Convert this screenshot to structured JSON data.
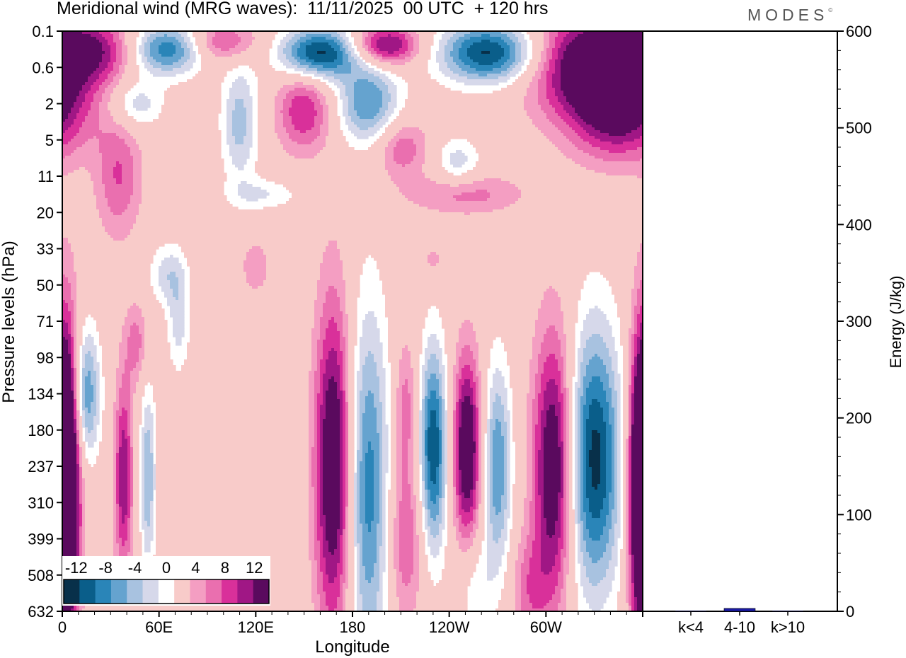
{
  "title": "Meridional wind (MRG waves):  11/11/2025  00 UTC  + 120 hrs",
  "brand": "MODES",
  "brand_mark": "©",
  "colors": {
    "neg": [
      "#08304a",
      "#0a5e8a",
      "#2a85b8",
      "#65a3cf",
      "#a8c2e0",
      "#d6d8ea"
    ],
    "pos": [
      "#f8cbc9",
      "#f49ec2",
      "#ea6faf",
      "#d9309a",
      "#a01785",
      "#5a0a5e"
    ],
    "zero": "#ffffff",
    "energy_bar": "#1a1aa6"
  },
  "chart_data": [
    {
      "type": "heatmap",
      "title": "Meridional wind (MRG waves)",
      "xlabel": "Longitude",
      "ylabel": "Pressure levels (hPa)",
      "x_ticks": [
        "0",
        "60E",
        "120E",
        "180",
        "120W",
        "60W"
      ],
      "x_tick_values": [
        0,
        60,
        120,
        180,
        240,
        300
      ],
      "xlim": [
        0,
        360
      ],
      "y_ticks": [
        "0.1",
        "0.6",
        "2",
        "5",
        "11",
        "20",
        "33",
        "50",
        "71",
        "98",
        "134",
        "180",
        "237",
        "310",
        "399",
        "508",
        "632"
      ],
      "colorbar": {
        "levels": [
          -14,
          -12,
          -10,
          -8,
          -6,
          -4,
          -2,
          2,
          4,
          6,
          8,
          10,
          12,
          14
        ],
        "labels": [
          "-12",
          "-8",
          "-4",
          "0",
          "4",
          "8",
          "12"
        ],
        "label_values": [
          -12,
          -8,
          -4,
          0,
          4,
          8,
          12
        ]
      },
      "features": [
        {
          "lon": 2,
          "lev": 12.5,
          "rx": 6,
          "ry": 3.2,
          "amp": 15
        },
        {
          "lon": 15,
          "lev": 10.0,
          "rx": 6,
          "ry": 1.3,
          "amp": -10
        },
        {
          "lon": 38,
          "lev": 12.3,
          "rx": 4,
          "ry": 1.9,
          "amp": 10
        },
        {
          "lon": 53,
          "lev": 12.3,
          "rx": 3.5,
          "ry": 1.8,
          "amp": -8
        },
        {
          "lon": 46,
          "lev": 8.6,
          "rx": 5,
          "ry": 0.8,
          "amp": 5
        },
        {
          "lon": 72,
          "lev": 8.0,
          "rx": 5,
          "ry": 1.0,
          "amp": -5
        },
        {
          "lon": 168,
          "lev": 12.0,
          "rx": 8,
          "ry": 3.2,
          "amp": 14
        },
        {
          "lon": 190,
          "lev": 12.6,
          "rx": 9,
          "ry": 3.5,
          "amp": -11
        },
        {
          "lon": 213,
          "lev": 10.3,
          "rx": 5,
          "ry": 1.3,
          "amp": 5
        },
        {
          "lon": 213,
          "lev": 14.0,
          "rx": 8,
          "ry": 1.6,
          "amp": 6
        },
        {
          "lon": 230,
          "lev": 11.5,
          "rx": 6,
          "ry": 2.0,
          "amp": -14
        },
        {
          "lon": 251,
          "lev": 11.5,
          "rx": 6,
          "ry": 1.8,
          "amp": 14
        },
        {
          "lon": 270,
          "lev": 12.0,
          "rx": 6,
          "ry": 2.0,
          "amp": -10
        },
        {
          "lon": 256,
          "lev": 15.3,
          "rx": 8,
          "ry": 1.0,
          "amp": -4
        },
        {
          "lon": 305,
          "lev": 12.0,
          "rx": 9,
          "ry": 2.6,
          "amp": 14
        },
        {
          "lon": 330,
          "lev": 11.8,
          "rx": 12,
          "ry": 2.6,
          "amp": -15
        },
        {
          "lon": 360,
          "lev": 12.5,
          "rx": 6,
          "ry": 2.6,
          "amp": 14
        },
        {
          "lon": 290,
          "lev": 15.4,
          "rx": 8,
          "ry": 1.1,
          "amp": 5
        },
        {
          "lon": 20,
          "lev": 0.5,
          "rx": 18,
          "ry": 0.6,
          "amp": 7
        },
        {
          "lon": 65,
          "lev": 0.5,
          "rx": 16,
          "ry": 0.5,
          "amp": -12
        },
        {
          "lon": 100,
          "lev": 0.3,
          "rx": 16,
          "ry": 0.4,
          "amp": 7
        },
        {
          "lon": 160,
          "lev": 0.6,
          "rx": 18,
          "ry": 0.5,
          "amp": -15
        },
        {
          "lon": 200,
          "lev": 0.4,
          "rx": 15,
          "ry": 0.4,
          "amp": 12
        },
        {
          "lon": 265,
          "lev": 0.6,
          "rx": 22,
          "ry": 0.6,
          "amp": -15
        },
        {
          "lon": 335,
          "lev": 0.9,
          "rx": 30,
          "ry": 1.0,
          "amp": 16
        },
        {
          "lon": 45,
          "lev": 2.0,
          "rx": 12,
          "ry": 0.5,
          "amp": -6
        },
        {
          "lon": 35,
          "lev": 4.0,
          "rx": 10,
          "ry": 1.2,
          "amp": 6
        },
        {
          "lon": 110,
          "lev": 2.5,
          "rx": 8,
          "ry": 1.2,
          "amp": -7
        },
        {
          "lon": 150,
          "lev": 2.2,
          "rx": 12,
          "ry": 0.8,
          "amp": 8
        },
        {
          "lon": 190,
          "lev": 2.0,
          "rx": 14,
          "ry": 0.8,
          "amp": -10
        },
        {
          "lon": 210,
          "lev": 3.2,
          "rx": 12,
          "ry": 0.6,
          "amp": 6
        },
        {
          "lon": 245,
          "lev": 3.6,
          "rx": 10,
          "ry": 0.5,
          "amp": -5
        },
        {
          "lon": 345,
          "lev": 2.4,
          "rx": 22,
          "ry": 0.9,
          "amp": 9
        },
        {
          "lon": 250,
          "lev": 4.5,
          "rx": 25,
          "ry": 0.4,
          "amp": 5
        },
        {
          "lon": 125,
          "lev": 4.5,
          "rx": 15,
          "ry": 0.3,
          "amp": -4
        },
        {
          "lon": 65,
          "lev": 6.7,
          "rx": 8,
          "ry": 0.6,
          "amp": -5
        },
        {
          "lon": 120,
          "lev": 6.5,
          "rx": 6,
          "ry": 0.5,
          "amp": 4
        },
        {
          "lon": 230,
          "lev": 6.3,
          "rx": 5,
          "ry": 0.3,
          "amp": 3
        }
      ]
    },
    {
      "type": "bar",
      "title": "",
      "xlabel": "",
      "ylabel": "Energy (J/kg)",
      "categories": [
        "k<4",
        "4-10",
        "k>10"
      ],
      "values": [
        0.5,
        3,
        0.5
      ],
      "ylim": [
        0,
        600
      ],
      "y_ticks": [
        "0",
        "100",
        "200",
        "300",
        "400",
        "500",
        "600"
      ],
      "y_tick_values": [
        0,
        100,
        200,
        300,
        400,
        500,
        600
      ]
    }
  ]
}
